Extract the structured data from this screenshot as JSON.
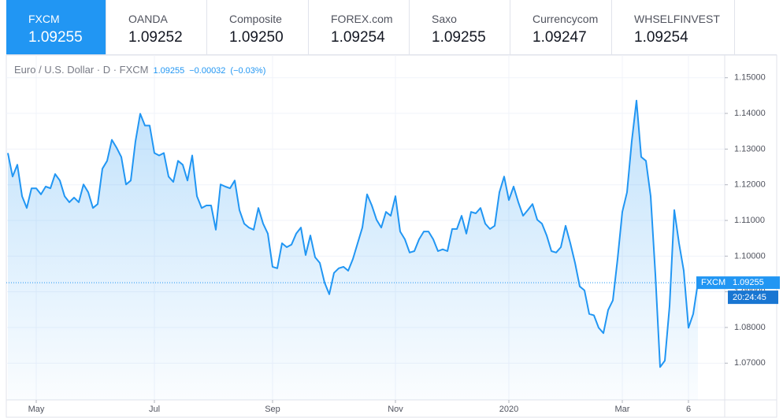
{
  "tabs": [
    {
      "name": "FXCM",
      "price": "1.09255"
    },
    {
      "name": "OANDA",
      "price": "1.09252"
    },
    {
      "name": "Composite",
      "price": "1.09250"
    },
    {
      "name": "FOREX.com",
      "price": "1.09254"
    },
    {
      "name": "Saxo",
      "price": "1.09255"
    },
    {
      "name": "Currencycom",
      "price": "1.09247"
    },
    {
      "name": "WHSELFINVEST",
      "price": "1.09254"
    }
  ],
  "chart_data": {
    "type": "area",
    "title": "Euro / U.S. Dollar · D · FXCM",
    "quote": {
      "last": "1.09255",
      "change": "−0.00032",
      "change_pct": "(−0.03%)"
    },
    "price_label": {
      "source": "FXCM",
      "value": 1.09255,
      "value_label": "1.09255",
      "time": "20:24:45"
    },
    "color": "#2196f3",
    "grid": true,
    "ylim": [
      1.0597,
      1.1559
    ],
    "yticks": [
      {
        "value": 1.07,
        "label": "1.07000"
      },
      {
        "value": 1.08,
        "label": "1.08000"
      },
      {
        "value": 1.09,
        "label": "1.09000"
      },
      {
        "value": 1.1,
        "label": "1.10000"
      },
      {
        "value": 1.11,
        "label": "1.11000"
      },
      {
        "value": 1.12,
        "label": "1.12000"
      },
      {
        "value": 1.13,
        "label": "1.13000"
      },
      {
        "value": 1.14,
        "label": "1.14000"
      },
      {
        "value": 1.15,
        "label": "1.15000"
      }
    ],
    "categories": [
      null,
      null,
      null,
      null,
      null,
      null,
      "May",
      null,
      null,
      null,
      null,
      null,
      null,
      null,
      null,
      null,
      null,
      null,
      null,
      null,
      null,
      null,
      null,
      null,
      null,
      null,
      null,
      null,
      null,
      null,
      null,
      "Jul",
      null,
      null,
      null,
      null,
      null,
      null,
      null,
      null,
      null,
      null,
      null,
      null,
      null,
      null,
      null,
      null,
      null,
      null,
      null,
      null,
      null,
      null,
      null,
      null,
      "Sep",
      null,
      null,
      null,
      null,
      null,
      null,
      null,
      null,
      null,
      null,
      null,
      null,
      null,
      null,
      null,
      null,
      null,
      null,
      null,
      null,
      null,
      null,
      null,
      null,
      null,
      "Nov",
      null,
      null,
      null,
      null,
      null,
      null,
      null,
      null,
      null,
      null,
      null,
      null,
      null,
      null,
      null,
      null,
      null,
      null,
      null,
      null,
      null,
      null,
      null,
      "2020",
      null,
      null,
      null,
      null,
      null,
      null,
      null,
      null,
      null,
      null,
      null,
      null,
      null,
      null,
      null,
      null,
      null,
      null,
      null,
      null,
      null,
      null,
      null,
      "Mar",
      null,
      null,
      null,
      null,
      null,
      null,
      null,
      null,
      null,
      null,
      null,
      null,
      null,
      "6",
      null,
      null
    ],
    "values": [
      1.1289,
      1.1223,
      1.1256,
      1.1168,
      1.1135,
      1.119,
      1.119,
      1.1173,
      1.1195,
      1.119,
      1.123,
      1.1212,
      1.1168,
      1.1151,
      1.1164,
      1.1151,
      1.1201,
      1.1179,
      1.1135,
      1.1146,
      1.1245,
      1.1267,
      1.1326,
      1.1304,
      1.1278,
      1.1201,
      1.1212,
      1.1322,
      1.1399,
      1.1366,
      1.1366,
      1.1289,
      1.1282,
      1.1289,
      1.1223,
      1.1208,
      1.1267,
      1.1256,
      1.1212,
      1.1282,
      1.1168,
      1.1135,
      1.1142,
      1.1142,
      1.1074,
      1.1201,
      1.1195,
      1.119,
      1.1212,
      1.1129,
      1.1091,
      1.108,
      1.1074,
      1.1135,
      1.1091,
      1.1063,
      1.097,
      1.0966,
      1.1036,
      1.1025,
      1.1032,
      1.1063,
      1.108,
      1.1003,
      1.1058,
      1.0997,
      1.0981,
      1.0926,
      1.0893,
      1.0953,
      1.0966,
      1.097,
      1.0959,
      1.0992,
      1.1036,
      1.108,
      1.1173,
      1.1142,
      1.1102,
      1.108,
      1.1124,
      1.1113,
      1.1168,
      1.1069,
      1.1047,
      1.101,
      1.1014,
      1.1047,
      1.1069,
      1.1069,
      1.1047,
      1.1014,
      1.1019,
      1.1014,
      1.1076,
      1.1076,
      1.1113,
      1.1063,
      1.1124,
      1.112,
      1.1135,
      1.1091,
      1.1076,
      1.1085,
      1.1179,
      1.1223,
      1.1157,
      1.1195,
      1.1151,
      1.1113,
      1.1129,
      1.1146,
      1.1102,
      1.1091,
      1.1058,
      1.1014,
      1.101,
      1.1025,
      1.1085,
      1.1036,
      1.0981,
      1.0915,
      1.0904,
      1.0838,
      1.0834,
      1.0799,
      1.0784,
      1.0849,
      1.0876,
      1.0992,
      1.1124,
      1.1179,
      1.1322,
      1.1436,
      1.1278,
      1.1267,
      1.1168,
      1.0948,
      1.0689,
      1.0707,
      1.086,
      1.1129,
      1.1036,
      1.0959,
      1.0799,
      1.0838,
      1.0926
    ]
  }
}
